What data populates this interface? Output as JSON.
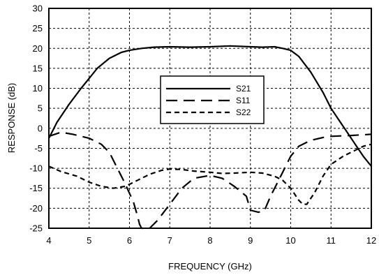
{
  "chart_data": {
    "type": "line",
    "xlabel": "FREQUENCY (GHz)",
    "ylabel": "RESPONSE (dB)",
    "xlim": [
      4,
      12
    ],
    "ylim": [
      -25,
      30
    ],
    "xticks": [
      4,
      5,
      6,
      7,
      8,
      9,
      10,
      11,
      12
    ],
    "yticks": [
      30,
      25,
      20,
      15,
      10,
      5,
      0,
      -5,
      -10,
      -15,
      -20,
      -25
    ],
    "xtick_labels": [
      "4",
      "5",
      "6",
      "7",
      "8",
      "9",
      "10",
      "11",
      "12"
    ],
    "ytick_labels": [
      "30",
      "25",
      "20",
      "15",
      "10",
      "5",
      "0",
      "-5",
      "-10",
      "-15",
      "-20",
      "-25"
    ],
    "grid": true,
    "legend_position": "center",
    "series": [
      {
        "name": "S21",
        "style": "solid",
        "x": [
          4.0,
          4.2,
          4.5,
          4.8,
          5.0,
          5.2,
          5.5,
          5.8,
          6.0,
          6.3,
          6.6,
          7.0,
          7.5,
          8.0,
          8.5,
          9.0,
          9.3,
          9.6,
          9.8,
          10.0,
          10.2,
          10.5,
          10.8,
          11.0,
          11.2,
          11.4,
          11.6,
          11.8,
          12.0
        ],
        "y": [
          -2.5,
          1.5,
          6,
          10,
          12.5,
          15,
          17.5,
          19,
          19.5,
          20,
          20.3,
          20.4,
          20.3,
          20.4,
          20.6,
          20.4,
          20.3,
          20.4,
          20,
          19.5,
          18,
          14,
          9,
          5,
          2,
          -1,
          -4,
          -7,
          -9.5
        ]
      },
      {
        "name": "S11",
        "style": "long-dash",
        "x": [
          4.0,
          4.3,
          4.6,
          5.0,
          5.3,
          5.5,
          5.7,
          5.9,
          6.1,
          6.2,
          6.25,
          6.3,
          6.5,
          6.7,
          7.0,
          7.3,
          7.6,
          8.0,
          8.3,
          8.6,
          8.9,
          9.0,
          9.2,
          9.35,
          9.5,
          9.7,
          9.9,
          10.0,
          10.2,
          10.5,
          10.8,
          11.0,
          11.5,
          12.0
        ],
        "y": [
          -2,
          -1,
          -1.5,
          -2.5,
          -4,
          -6,
          -10,
          -14,
          -18.5,
          -22,
          -24,
          -25,
          -25,
          -23,
          -19,
          -15,
          -12.5,
          -11.8,
          -12.5,
          -14.5,
          -17,
          -20.5,
          -21,
          -20.5,
          -17,
          -13,
          -9,
          -7,
          -4.5,
          -3,
          -2.3,
          -2,
          -1.8,
          -1.5
        ]
      },
      {
        "name": "S22",
        "style": "short-dash",
        "x": [
          4.0,
          4.3,
          4.7,
          5.0,
          5.3,
          5.6,
          5.9,
          6.2,
          6.5,
          6.8,
          7.0,
          7.3,
          7.6,
          8.0,
          8.3,
          8.6,
          9.0,
          9.3,
          9.6,
          9.8,
          10.0,
          10.2,
          10.3,
          10.4,
          10.6,
          10.8,
          11.0,
          11.3,
          11.6,
          11.8,
          12.0
        ],
        "y": [
          -9.5,
          -10.8,
          -12,
          -13.5,
          -14.5,
          -15,
          -14.5,
          -13,
          -11.5,
          -10.5,
          -10.2,
          -10.3,
          -10.7,
          -11,
          -11.3,
          -11.2,
          -11,
          -11.2,
          -12,
          -13,
          -15,
          -18,
          -19,
          -19,
          -16,
          -12,
          -9,
          -7,
          -5.5,
          -4.5,
          -4
        ]
      }
    ]
  }
}
